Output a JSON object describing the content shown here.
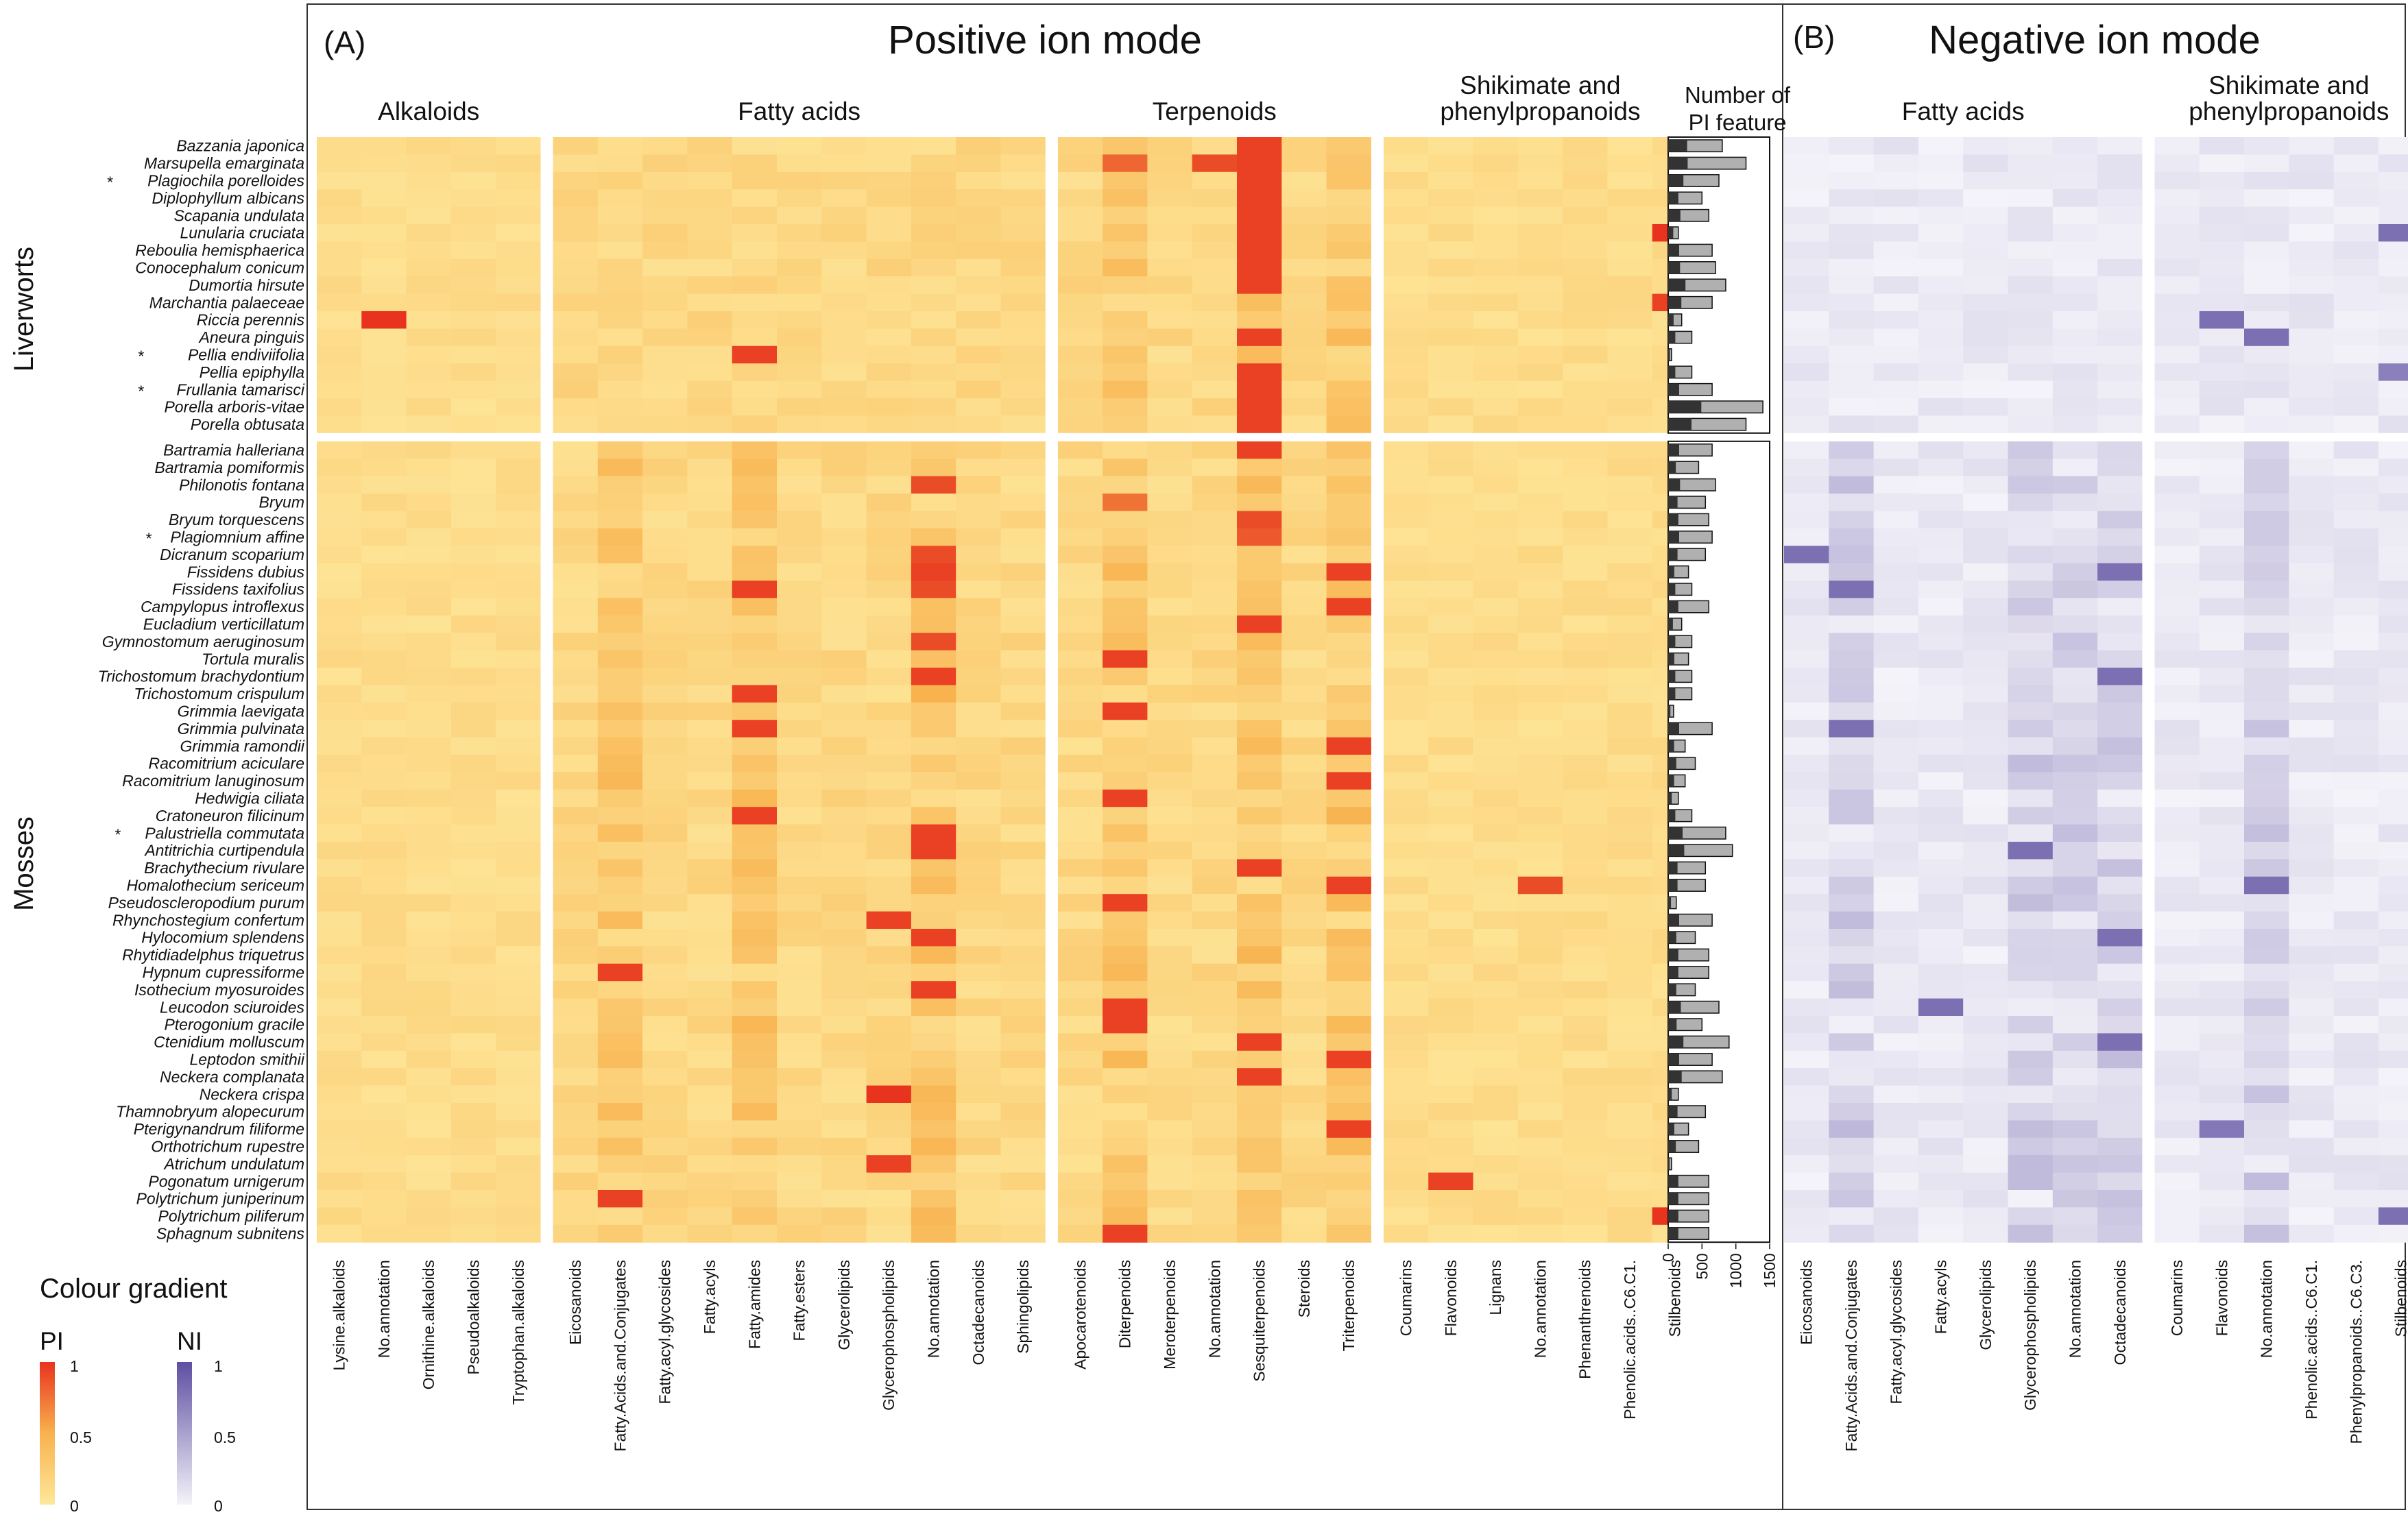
{
  "chart_data": {
    "type": "heatmap",
    "panels": [
      {
        "label": "(A)",
        "title": "Positive ion mode"
      },
      {
        "label": "(B)",
        "title": "Negative ion mode"
      }
    ],
    "pi_groups": [
      {
        "name": "Alkaloids",
        "categories": [
          "Lysine.alkaloids",
          "No.annotation",
          "Ornithine.alkaloids",
          "Pseudoalkaloids",
          "Tryptophan.alkaloids"
        ]
      },
      {
        "name": "Fatty acids",
        "categories": [
          "Eicosanoids",
          "Fatty.Acids.and.Conjugates",
          "Fatty.acyl.glycosides",
          "Fatty.acyls",
          "Fatty.amides",
          "Fatty.esters",
          "Glycerolipids",
          "Glycerophospholipids",
          "No.annotation",
          "Octadecanoids",
          "Sphingolipids"
        ]
      },
      {
        "name": "Terpenoids",
        "categories": [
          "Apocarotenoids",
          "Diterpenoids",
          "Meroterpenoids",
          "No.annotation",
          "Sesquiterpenoids",
          "Steroids",
          "Triterpenoids"
        ]
      },
      {
        "name": "Shikimate and phenylpropanoids",
        "categories": [
          "Coumarins",
          "Flavonoids",
          "Lignans",
          "No.annotation",
          "Phenanthrenoids",
          "Phenolic.acids..C6.C1.",
          "Stilbenoids"
        ]
      }
    ],
    "ni_groups": [
      {
        "name": "Fatty acids",
        "categories": [
          "Eicosanoids",
          "Fatty.Acids.and.Conjugates",
          "Fatty.acyl.glycosides",
          "Fatty.acyls",
          "Glycerolipids",
          "Glycerophospholipids",
          "No.annotation",
          "Octadecanoids"
        ]
      },
      {
        "name": "Shikimate and phenylpropanoids",
        "categories": [
          "Coumarins",
          "Flavonoids",
          "No.annotation",
          "Phenolic.acids..C6.C1.",
          "Phenylpropanoids..C6.C3.",
          "Stilbenoids"
        ]
      }
    ],
    "bar_panel": {
      "title_line1": "Number of",
      "title_line2": "PI feature",
      "xticks": [
        0,
        500,
        1000,
        1500
      ],
      "xlim": [
        0,
        1500
      ]
    },
    "taxa": [
      {
        "group": "Liverworts",
        "species": [
          "Bazzania japonica",
          "Marsupella emarginata",
          "Plagiochila porelloides",
          "Diplophyllum albicans",
          "Scapania undulata",
          "Lunularia cruciata",
          "Reboulia hemisphaerica",
          "Conocephalum conicum",
          "Dumortia hirsute",
          "Marchantia palaeceae",
          "Riccia perennis",
          "Aneura pinguis",
          "Pellia endiviifolia",
          "Pellia epiphylla",
          "Frullania tamarisci",
          "Porella arboris-vitae",
          "Porella obtusata"
        ]
      },
      {
        "group": "Mosses",
        "species": [
          "Bartramia halleriana",
          "Bartramia pomiformis",
          "Philonotis fontana",
          "Bryum",
          "Bryum torquescens",
          "Plagiomnium affine",
          "Dicranum scoparium",
          "Fissidens dubius",
          "Fissidens taxifolius",
          "Campylopus introflexus",
          "Eucladium verticillatum",
          "Gymnostomum aeruginosum",
          "Tortula muralis",
          "Trichostomum brachydontium",
          "Trichostomum crispulum",
          "Grimmia laevigata",
          "Grimmia pulvinata",
          "Grimmia ramondii",
          "Racomitrium aciculare",
          "Racomitrium lanuginosum",
          "Hedwigia ciliata",
          "Cratoneuron filicinum",
          "Palustriella commutata",
          "Antitrichia curtipendula",
          "Brachythecium rivulare",
          "Homalothecium sericeum",
          "Pseudoscleropodium purum",
          "Rhynchostegium confertum",
          "Hylocomium splendens",
          "Rhytidiadelphus triquetrus",
          "Hypnum cupressiforme",
          "Isothecium myosuroides",
          "Leucodon sciuroides",
          "Pterogonium gracile",
          "Ctenidium molluscum",
          "Leptodon smithii",
          "Neckera complanata",
          "Neckera crispa",
          "Thamnobryum alopecurum",
          "Pterigynandrum filiforme",
          "Orthotrichum rupestre",
          "Atrichum undulatum",
          "Pogonatum urnigerum",
          "Polytrichum juniperinum",
          "Polytrichum piliferum",
          "Sphagnum subnitens"
        ]
      }
    ],
    "asterisk_species": [
      "Plagiochila porelloides",
      "Pellia endiviifolia",
      "Frullania tamarisci",
      "Plagiomnium affine",
      "Palustriella commutata"
    ],
    "pi_features": [
      800,
      1150,
      750,
      500,
      600,
      150,
      650,
      700,
      850,
      650,
      200,
      350,
      50,
      350,
      650,
      1400,
      1150,
      650,
      450,
      700,
      550,
      600,
      650,
      550,
      300,
      350,
      600,
      200,
      350,
      300,
      350,
      350,
      80,
      650,
      250,
      400,
      250,
      150,
      350,
      850,
      950,
      550,
      550,
      120,
      650,
      400,
      600,
      600,
      400,
      750,
      500,
      900,
      650,
      800,
      150,
      550,
      300,
      450,
      50,
      600,
      600,
      600,
      600
    ],
    "pi_dark_fraction": [
      0.35,
      0.25,
      0.3,
      0.3,
      0.3,
      0.5,
      0.25,
      0.25,
      0.3,
      0.3,
      0.4,
      0.3,
      0.5,
      0.3,
      0.25,
      0.35,
      0.3,
      0.25,
      0.25,
      0.25,
      0.25,
      0.25,
      0.25,
      0.25,
      0.3,
      0.3,
      0.25,
      0.35,
      0.3,
      0.3,
      0.3,
      0.3,
      0.4,
      0.25,
      0.35,
      0.3,
      0.35,
      0.35,
      0.3,
      0.25,
      0.25,
      0.25,
      0.25,
      0.35,
      0.25,
      0.3,
      0.25,
      0.25,
      0.3,
      0.25,
      0.25,
      0.25,
      0.25,
      0.25,
      0.35,
      0.25,
      0.3,
      0.25,
      0.4,
      0.25,
      0.25,
      0.25,
      0.25
    ],
    "highlights_pi": [
      {
        "species": "Bazzania japonica",
        "category": "Sesquiterpenoids",
        "value": 0.95
      },
      {
        "species": "Marsupella emarginata",
        "category": "Diterpenoids",
        "value": 0.8
      },
      {
        "species": "Marsupella emarginata",
        "category": "No.annotation|Terpenoids",
        "value": 0.9
      },
      {
        "species": "Marsupella emarginata",
        "category": "Sesquiterpenoids",
        "value": 0.95
      },
      {
        "species": "Plagiochila porelloides",
        "category": "Sesquiterpenoids",
        "value": 0.95
      },
      {
        "species": "Diplophyllum albicans",
        "category": "Sesquiterpenoids",
        "value": 0.95
      },
      {
        "species": "Scapania undulata",
        "category": "Sesquiterpenoids",
        "value": 0.95
      },
      {
        "species": "Lunularia cruciata",
        "category": "Sesquiterpenoids",
        "value": 0.95
      },
      {
        "species": "Lunularia cruciata",
        "category": "Stilbenoids",
        "value": 1.0
      },
      {
        "species": "Reboulia hemisphaerica",
        "category": "Sesquiterpenoids",
        "value": 0.95
      },
      {
        "species": "Conocephalum conicum",
        "category": "Sesquiterpenoids",
        "value": 0.95
      },
      {
        "species": "Dumortia hirsute",
        "category": "Sesquiterpenoids",
        "value": 0.95
      },
      {
        "species": "Marchantia palaeceae",
        "category": "Stilbenoids",
        "value": 0.95
      },
      {
        "species": "Riccia perennis",
        "category": "No.annotation|Alkaloids",
        "value": 1.0
      },
      {
        "species": "Aneura pinguis",
        "category": "Sesquiterpenoids",
        "value": 0.95
      },
      {
        "species": "Pellia endiviifolia",
        "category": "Fatty.amides",
        "value": 0.95
      },
      {
        "species": "Pellia epiphylla",
        "category": "Sesquiterpenoids",
        "value": 0.95
      },
      {
        "species": "Frullania tamarisci",
        "category": "Sesquiterpenoids",
        "value": 0.95
      },
      {
        "species": "Porella arboris-vitae",
        "category": "Sesquiterpenoids",
        "value": 0.95
      },
      {
        "species": "Porella obtusata",
        "category": "Sesquiterpenoids",
        "value": 0.95
      },
      {
        "species": "Bartramia halleriana",
        "category": "Sesquiterpenoids",
        "value": 0.95
      },
      {
        "species": "Philonotis fontana",
        "category": "No.annotation|Fatty acids",
        "value": 0.9
      },
      {
        "species": "Bryum",
        "category": "Diterpenoids",
        "value": 0.75
      },
      {
        "species": "Bryum torquescens",
        "category": "Sesquiterpenoids",
        "value": 0.9
      },
      {
        "species": "Plagiomnium affine",
        "category": "Sesquiterpenoids",
        "value": 0.85
      },
      {
        "species": "Dicranum scoparium",
        "category": "No.annotation|Fatty acids",
        "value": 0.9
      },
      {
        "species": "Fissidens dubius",
        "category": "No.annotation|Fatty acids",
        "value": 0.95
      },
      {
        "species": "Fissidens dubius",
        "category": "Triterpenoids",
        "value": 0.95
      },
      {
        "species": "Fissidens taxifolius",
        "category": "Fatty.amides",
        "value": 0.95
      },
      {
        "species": "Fissidens taxifolius",
        "category": "No.annotation|Fatty acids",
        "value": 0.9
      },
      {
        "species": "Campylopus introflexus",
        "category": "Triterpenoids",
        "value": 0.95
      },
      {
        "species": "Eucladium verticillatum",
        "category": "Sesquiterpenoids",
        "value": 0.95
      },
      {
        "species": "Gymnostomum aeruginosum",
        "category": "No.annotation|Fatty acids",
        "value": 0.9
      },
      {
        "species": "Tortula muralis",
        "category": "Diterpenoids",
        "value": 0.95
      },
      {
        "species": "Trichostomum brachydontium",
        "category": "No.annotation|Fatty acids",
        "value": 0.95
      },
      {
        "species": "Trichostomum crispulum",
        "category": "Fatty.amides",
        "value": 0.95
      },
      {
        "species": "Grimmia laevigata",
        "category": "Diterpenoids",
        "value": 0.95
      },
      {
        "species": "Grimmia pulvinata",
        "category": "Fatty.amides",
        "value": 0.95
      },
      {
        "species": "Grimmia ramondii",
        "category": "Triterpenoids",
        "value": 0.95
      },
      {
        "species": "Racomitrium lanuginosum",
        "category": "Triterpenoids",
        "value": 0.95
      },
      {
        "species": "Hedwigia ciliata",
        "category": "Diterpenoids",
        "value": 0.95
      },
      {
        "species": "Cratoneuron filicinum",
        "category": "Fatty.amides",
        "value": 0.95
      },
      {
        "species": "Palustriella commutata",
        "category": "No.annotation|Fatty acids",
        "value": 0.95
      },
      {
        "species": "Antitrichia curtipendula",
        "category": "No.annotation|Fatty acids",
        "value": 0.95
      },
      {
        "species": "Brachythecium rivulare",
        "category": "Sesquiterpenoids",
        "value": 0.95
      },
      {
        "species": "Homalothecium sericeum",
        "category": "No.annotation|Shikimate",
        "value": 0.9
      },
      {
        "species": "Homalothecium sericeum",
        "category": "Triterpenoids",
        "value": 0.95
      },
      {
        "species": "Pseudoscleropodium purum",
        "category": "Diterpenoids",
        "value": 0.95
      },
      {
        "species": "Rhynchostegium confertum",
        "category": "Glycerophospholipids",
        "value": 0.95
      },
      {
        "species": "Hylocomium splendens",
        "category": "No.annotation|Fatty acids",
        "value": 0.95
      },
      {
        "species": "Hypnum cupressiforme",
        "category": "Fatty.Acids.and.Conjugates",
        "value": 0.95
      },
      {
        "species": "Isothecium myosuroides",
        "category": "No.annotation|Fatty acids",
        "value": 0.95
      },
      {
        "species": "Leucodon sciuroides",
        "category": "Diterpenoids",
        "value": 0.95
      },
      {
        "species": "Pterogonium gracile",
        "category": "Diterpenoids",
        "value": 0.95
      },
      {
        "species": "Ctenidium molluscum",
        "category": "Sesquiterpenoids",
        "value": 0.95
      },
      {
        "species": "Leptodon smithii",
        "category": "Triterpenoids",
        "value": 0.95
      },
      {
        "species": "Neckera complanata",
        "category": "Sesquiterpenoids",
        "value": 0.95
      },
      {
        "species": "Neckera crispa",
        "category": "Glycerophospholipids",
        "value": 1.0
      },
      {
        "species": "Pterigynandrum filiforme",
        "category": "Triterpenoids",
        "value": 0.95
      },
      {
        "species": "Atrichum undulatum",
        "category": "Glycerophospholipids",
        "value": 0.95
      },
      {
        "species": "Pogonatum urnigerum",
        "category": "Flavonoids",
        "value": 0.95
      },
      {
        "species": "Polytrichum juniperinum",
        "category": "Fatty.Acids.and.Conjugates",
        "value": 0.95
      },
      {
        "species": "Polytrichum piliferum",
        "category": "Stilbenoids",
        "value": 1.0
      },
      {
        "species": "Sphagnum subnitens",
        "category": "Diterpenoids",
        "value": 0.95
      }
    ],
    "highlights_ni": [
      {
        "species": "Lunularia cruciata",
        "category": "Stilbenoids",
        "value": 0.8
      },
      {
        "species": "Riccia perennis",
        "category": "Flavonoids",
        "value": 0.8
      },
      {
        "species": "Aneura pinguis",
        "category": "No.annotation|Shikimate",
        "value": 0.8
      },
      {
        "species": "Pellia epiphylla",
        "category": "Stilbenoids",
        "value": 0.7
      },
      {
        "species": "Dicranum scoparium",
        "category": "Eicosanoids",
        "value": 0.8
      },
      {
        "species": "Fissidens dubius",
        "category": "Octadecanoids",
        "value": 0.8
      },
      {
        "species": "Fissidens taxifolius",
        "category": "Fatty.Acids.and.Conjugates",
        "value": 0.8
      },
      {
        "species": "Trichostomum brachydontium",
        "category": "Octadecanoids",
        "value": 0.8
      },
      {
        "species": "Grimmia pulvinata",
        "category": "Fatty.Acids.and.Conjugates",
        "value": 0.8
      },
      {
        "species": "Antitrichia curtipendula",
        "category": "Glycerophospholipids",
        "value": 0.8
      },
      {
        "species": "Homalothecium sericeum",
        "category": "No.annotation|Shikimate",
        "value": 0.8
      },
      {
        "species": "Hylocomium splendens",
        "category": "Octadecanoids",
        "value": 0.8
      },
      {
        "species": "Leucodon sciuroides",
        "category": "Fatty.acyls",
        "value": 0.8
      },
      {
        "species": "Ctenidium molluscum",
        "category": "Octadecanoids",
        "value": 0.8
      },
      {
        "species": "Pterigynandrum filiforme",
        "category": "Flavonoids",
        "value": 0.75
      },
      {
        "species": "Polytrichum piliferum",
        "category": "Stilbenoids",
        "value": 0.8
      }
    ],
    "legend": {
      "title": "Colour gradient",
      "pi": {
        "label": "PI",
        "ticks": [
          "1",
          "0.5",
          "0"
        ],
        "low_color": "#FEE79A",
        "high_color": "#E8331E"
      },
      "ni": {
        "label": "NI",
        "ticks": [
          "1",
          "0.5",
          "0"
        ],
        "low_color": "#F4F3F9",
        "high_color": "#5E4FA2"
      }
    }
  }
}
